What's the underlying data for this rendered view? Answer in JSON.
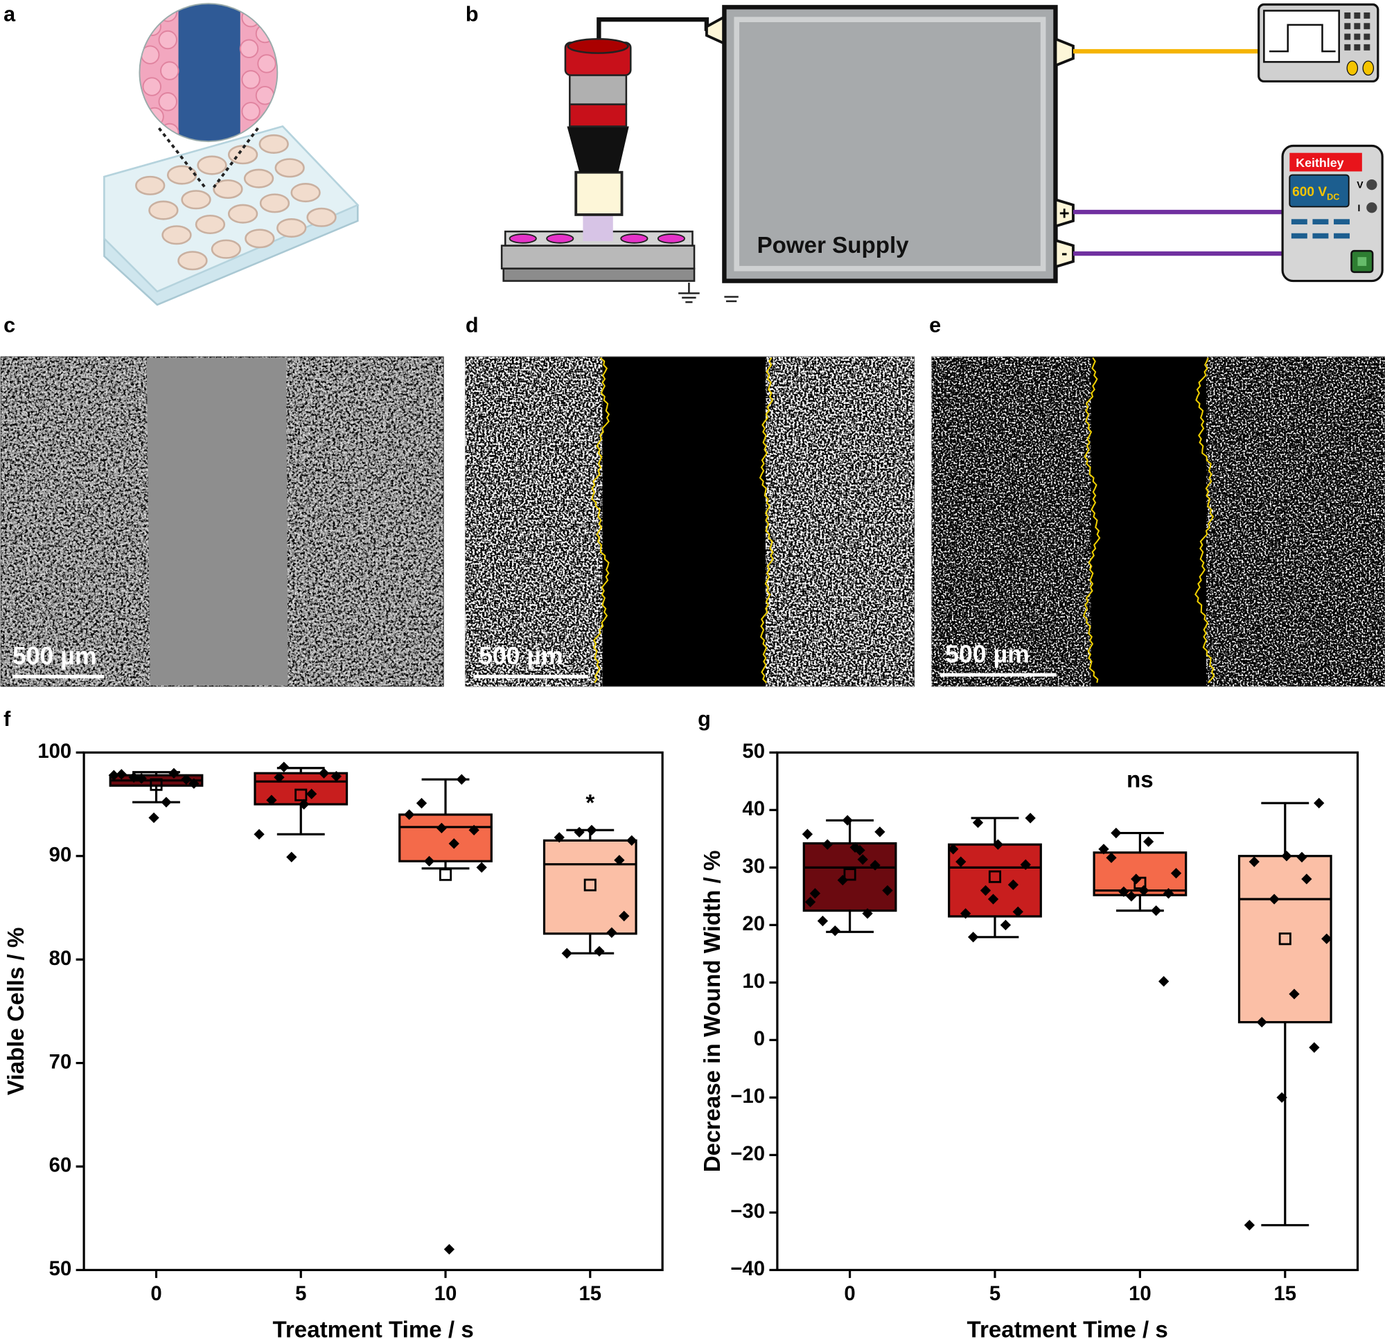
{
  "panel_labels": [
    "a",
    "b",
    "c",
    "d",
    "e",
    "f",
    "g"
  ],
  "diagram": {
    "power_supply": "Power Supply",
    "meter_brand": "Keithley",
    "meter_voltage": "600 V",
    "meter_voltage_sub": "DC",
    "meter_v": "V",
    "meter_i": "I",
    "plus": "+",
    "minus": "-"
  },
  "scale_bars": [
    "500 µm",
    "500 µm",
    "500 µm"
  ],
  "chart_data": [
    {
      "type": "box",
      "x_label": "Treatment Time / s",
      "y_label": "Viable Cells / %",
      "categories": [
        "0",
        "5",
        "10",
        "15"
      ],
      "colors": [
        "#6b0a10",
        "#c81e1e",
        "#f46a4a",
        "#fbbfa6"
      ],
      "ylim": [
        50,
        100
      ],
      "yticks": [
        50,
        60,
        70,
        80,
        90,
        100
      ],
      "boxes": [
        {
          "min": 95.2,
          "q1": 96.8,
          "median": 97.3,
          "q3": 97.8,
          "max": 98.1,
          "mean": 96.9,
          "points": [
            97.8,
            95.2,
            97.6,
            97.4,
            93.7,
            97.9,
            98.0,
            97.5,
            97.0
          ]
        },
        {
          "min": 92.1,
          "q1": 95.0,
          "median": 97.2,
          "q3": 98.0,
          "max": 98.5,
          "mean": 95.9,
          "points": [
            98.6,
            97.7,
            95.0,
            95.4,
            98.0,
            89.9,
            92.1,
            96.0,
            97.6
          ]
        },
        {
          "min": 88.8,
          "q1": 89.5,
          "median": 92.8,
          "q3": 94.0,
          "max": 97.4,
          "mean": 88.2,
          "points": [
            91.2,
            95.1,
            92.5,
            92.7,
            94.0,
            97.4,
            89.5,
            88.9,
            52.0
          ]
        },
        {
          "min": 80.6,
          "q1": 82.5,
          "median": 89.2,
          "q3": 91.5,
          "max": 92.5,
          "mean": 87.2,
          "points": [
            84.2,
            92.5,
            91.8,
            82.6,
            92.3,
            91.5,
            80.8,
            80.6,
            89.6
          ]
        }
      ],
      "annotations": [
        {
          "text": "*",
          "x": "15",
          "y": 95
        }
      ]
    },
    {
      "type": "box",
      "x_label": "Treatment Time / s",
      "y_label": "Decrease in Wound Width / %",
      "categories": [
        "0",
        "5",
        "10",
        "15"
      ],
      "colors": [
        "#6b0a10",
        "#c81e1e",
        "#f46a4a",
        "#fbbfa6"
      ],
      "ylim": [
        -40,
        50
      ],
      "yticks": [
        {
          "value": -40,
          "label": "−40"
        },
        {
          "value": -30,
          "label": "−30"
        },
        {
          "value": -20,
          "label": "−20"
        },
        {
          "value": -10,
          "label": "−10"
        },
        0,
        10,
        20,
        30,
        40,
        50
      ],
      "boxes": [
        {
          "min": 18.8,
          "q1": 22.5,
          "median": 30.0,
          "q3": 34.2,
          "max": 38.2,
          "mean": 28.8,
          "points": [
            35.8,
            33.0,
            34.0,
            36.2,
            38.2,
            25.5,
            22.0,
            19.0,
            26.0,
            33.5,
            20.7,
            30.4,
            27.8,
            24.0,
            31.4
          ]
        },
        {
          "min": 17.9,
          "q1": 21.5,
          "median": 30.0,
          "q3": 34.0,
          "max": 38.6,
          "mean": 28.4,
          "points": [
            37.8,
            38.6,
            34.0,
            22.0,
            22.3,
            26.0,
            33.2,
            20.0,
            17.9,
            30.5,
            24.5,
            31.0,
            27.0
          ]
        },
        {
          "min": 22.5,
          "q1": 25.2,
          "median": 26.0,
          "q3": 32.6,
          "max": 36.0,
          "mean": 27.3,
          "points": [
            34.5,
            36.0,
            25.5,
            28.0,
            33.2,
            22.5,
            25.8,
            29.0,
            26.0,
            31.7,
            10.2,
            25.0
          ]
        },
        {
          "min": -32.2,
          "q1": 3.1,
          "median": 24.5,
          "q3": 32.0,
          "max": 41.2,
          "mean": 17.6,
          "points": [
            41.2,
            32.0,
            31.0,
            28.0,
            24.5,
            17.6,
            8.0,
            3.1,
            -1.3,
            -10.0,
            -32.2,
            31.8
          ]
        }
      ],
      "annotations": [
        {
          "text": "ns",
          "x": "10",
          "y": 45
        }
      ]
    }
  ]
}
